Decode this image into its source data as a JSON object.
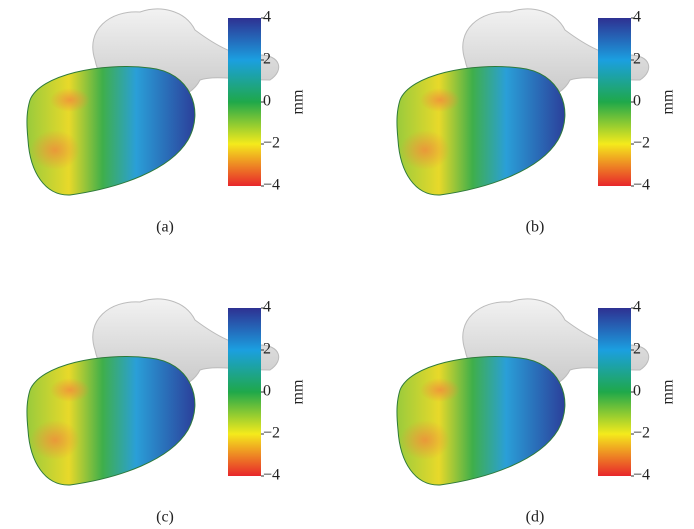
{
  "panels": [
    {
      "label": "(a)"
    },
    {
      "label": "(b)"
    },
    {
      "label": "(c)"
    },
    {
      "label": "(d)"
    }
  ],
  "colorbar": {
    "unit": "mm",
    "ticks": [
      4,
      2,
      0,
      {
        "value": -2,
        "label": "−2"
      },
      {
        "value": -4,
        "label": "−4"
      }
    ],
    "colors": [
      "#2e3192",
      "#1b9fe0",
      "#1fa84a",
      "#f4ea1c",
      "#e8262b"
    ]
  }
}
